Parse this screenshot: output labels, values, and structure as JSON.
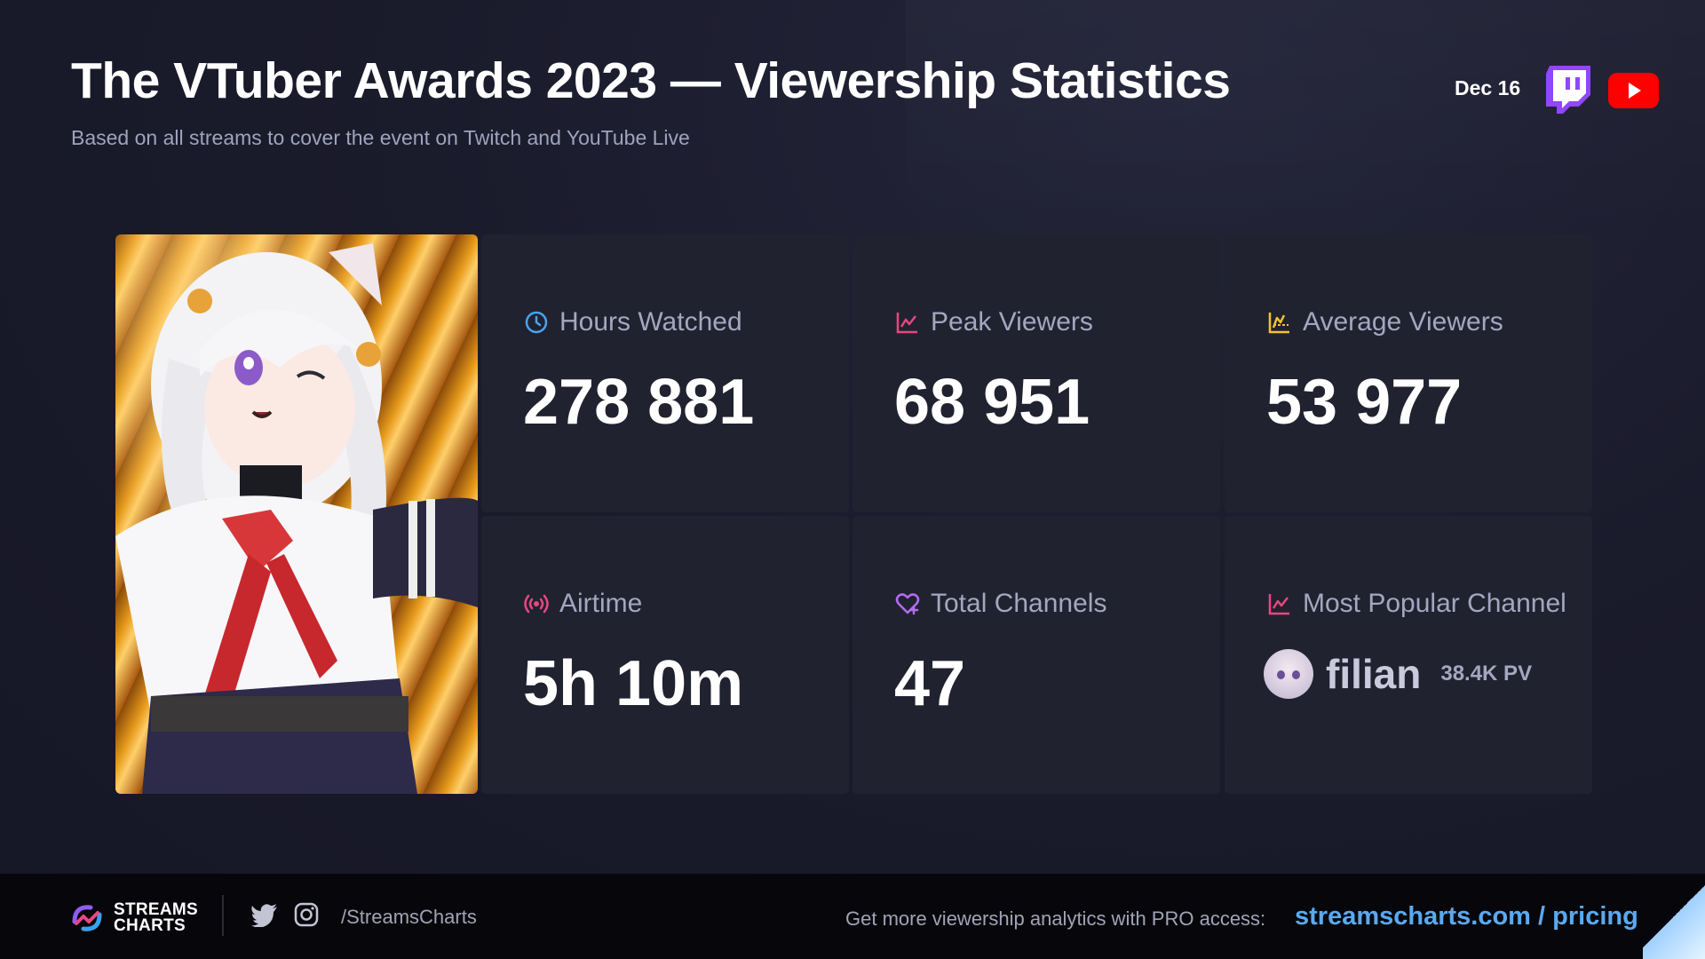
{
  "header": {
    "title": "The VTuber Awards 2023 — Viewership Statistics",
    "subtitle": "Based on all streams to cover the event on Twitch and YouTube Live",
    "date": "Dec 16",
    "platforms": [
      "twitch-icon",
      "youtube-icon"
    ]
  },
  "stats": [
    {
      "label": "Hours Watched",
      "value": "278 881",
      "icon": "clock-icon",
      "icon_color": "#4aa3f0"
    },
    {
      "label": "Peak Viewers",
      "value": "68 951",
      "icon": "chart-line-icon",
      "icon_color": "#e8477f"
    },
    {
      "label": "Average Viewers",
      "value": "53 977",
      "icon": "chart-average-icon",
      "icon_color": "#f2c230"
    },
    {
      "label": "Airtime",
      "value": "5h 10m",
      "icon": "broadcast-icon",
      "icon_color": "#e8477f"
    },
    {
      "label": "Total Channels",
      "value": "47",
      "icon": "heart-plus-icon",
      "icon_color": "#b36cf0"
    }
  ],
  "popular_channel": {
    "label": "Most Popular Channel",
    "icon": "chart-line-icon",
    "icon_color": "#e8477f",
    "name": "filian",
    "peak": "38.4K PV"
  },
  "footer": {
    "brand_line1": "STREAMS",
    "brand_line2": "CHARTS",
    "handle": "/StreamsCharts",
    "promo": "Get more viewership analytics with PRO access:",
    "link": "streamscharts.com / pricing",
    "link_color": "#5aa9f0"
  }
}
